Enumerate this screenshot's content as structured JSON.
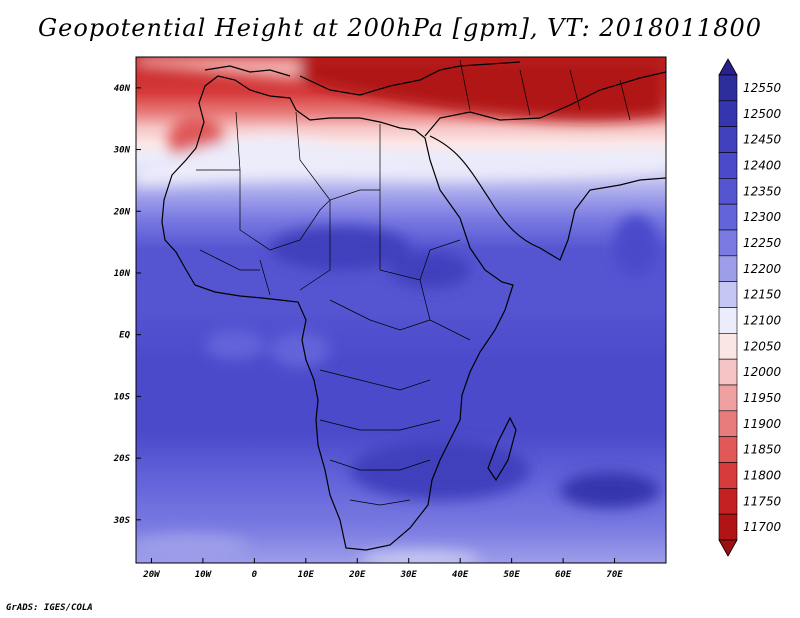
{
  "title": "Geopotential Height at 200hPa [gpm], VT: 2018011800",
  "credit": "GrADS: IGES/COLA",
  "map": {
    "lon_range": [
      -23,
      80
    ],
    "lat_range": [
      -37,
      45
    ],
    "lon_ticks": [
      {
        "value": -20,
        "label": "20W"
      },
      {
        "value": -10,
        "label": "10W"
      },
      {
        "value": 0,
        "label": "0"
      },
      {
        "value": 10,
        "label": "10E"
      },
      {
        "value": 20,
        "label": "20E"
      },
      {
        "value": 30,
        "label": "30E"
      },
      {
        "value": 40,
        "label": "40E"
      },
      {
        "value": 50,
        "label": "50E"
      },
      {
        "value": 60,
        "label": "60E"
      },
      {
        "value": 70,
        "label": "70E"
      }
    ],
    "lat_ticks": [
      {
        "value": 40,
        "label": "40N"
      },
      {
        "value": 30,
        "label": "30N"
      },
      {
        "value": 20,
        "label": "20N"
      },
      {
        "value": 10,
        "label": "10N"
      },
      {
        "value": 0,
        "label": "EQ"
      },
      {
        "value": -10,
        "label": "10S"
      },
      {
        "value": -20,
        "label": "20S"
      },
      {
        "value": -30,
        "label": "30S"
      }
    ]
  },
  "colorbar": {
    "levels": [
      "12550",
      "12500",
      "12450",
      "12400",
      "12350",
      "12300",
      "12250",
      "12200",
      "12150",
      "12100",
      "12050",
      "12000",
      "11950",
      "11900",
      "11850",
      "11800",
      "11750",
      "11700"
    ],
    "colors": [
      "#2d2d9c",
      "#3535ad",
      "#4040bd",
      "#4a4acb",
      "#5555d2",
      "#6464da",
      "#7a7ae2",
      "#9d9dea",
      "#c6c6f2",
      "#ececfb",
      "#fbe6e6",
      "#f6c4c4",
      "#efa0a0",
      "#e87c7c",
      "#e05858",
      "#d63a3a",
      "#c42222",
      "#b01414"
    ],
    "top_arrow_color": "#2a1f8f",
    "bottom_arrow_color": "#9e1010"
  }
}
